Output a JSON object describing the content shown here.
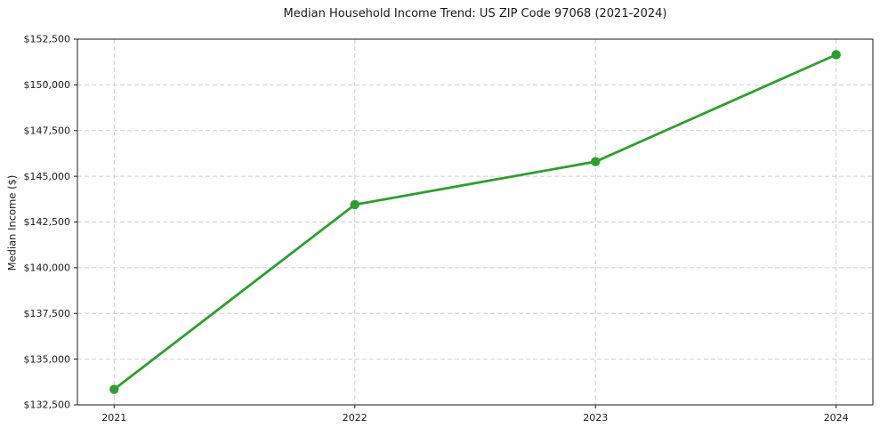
{
  "colors": {
    "line": "#2ca02c",
    "marker": "#2ca02c",
    "grid": "#cfcfcf",
    "axis": "#1a1a1a",
    "text": "#1a1a1a",
    "background": "#ffffff"
  },
  "chart_data": {
    "type": "line",
    "title": "Median Household Income Trend: US ZIP Code 97068 (2021-2024)",
    "xlabel": "",
    "ylabel": "Median Income ($)",
    "categories": [
      "2021",
      "2022",
      "2023",
      "2024"
    ],
    "values": [
      133350,
      143450,
      145800,
      151650
    ],
    "ylim": [
      132500,
      152500
    ],
    "y_tick_step": 2500,
    "y_tick_labels": [
      "$132,500",
      "$135,000",
      "$137,500",
      "$140,000",
      "$142,500",
      "$145,000",
      "$147,500",
      "$150,000",
      "$152,500"
    ],
    "x_tick_labels": [
      "2021",
      "2022",
      "2023",
      "2024"
    ],
    "grid": true,
    "grid_style": "dashed",
    "legend": false,
    "marker": "circle"
  }
}
